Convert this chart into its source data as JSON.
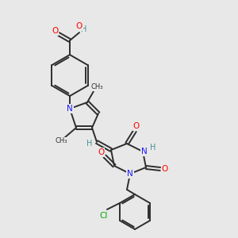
{
  "bg_color": "#e8e8e8",
  "bond_color": "#2d2d2d",
  "atom_colors": {
    "N": "#1a1aff",
    "O": "#ff0000",
    "Cl": "#00aa00",
    "H": "#4a9090",
    "C": "#2d2d2d"
  },
  "figsize": [
    3.0,
    3.0
  ],
  "dpi": 100
}
